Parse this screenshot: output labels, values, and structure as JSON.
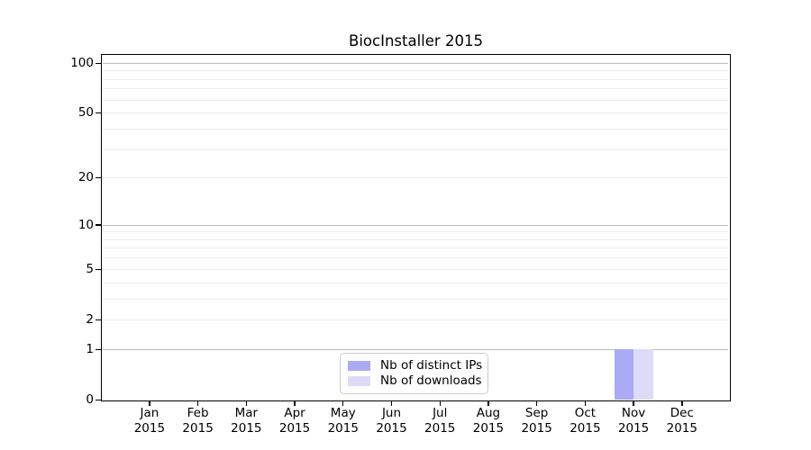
{
  "chart_data": {
    "type": "bar",
    "title": "BiocInstaller 2015",
    "xlabel": "",
    "ylabel": "",
    "categories": [
      "Jan 2015",
      "Feb 2015",
      "Mar 2015",
      "Apr 2015",
      "May 2015",
      "Jun 2015",
      "Jul 2015",
      "Aug 2015",
      "Sep 2015",
      "Oct 2015",
      "Nov 2015",
      "Dec 2015"
    ],
    "series": [
      {
        "name": "Nb of distinct IPs",
        "color": "#aaaaf5",
        "values": [
          0,
          0,
          0,
          0,
          0,
          0,
          0,
          0,
          0,
          0,
          1,
          0
        ]
      },
      {
        "name": "Nb of downloads",
        "color": "#dcdcf8",
        "values": [
          0,
          0,
          0,
          0,
          0,
          0,
          0,
          0,
          0,
          0,
          1,
          0
        ]
      }
    ],
    "y_scale": "log1p",
    "ylim": [
      0,
      112
    ],
    "y_ticks": [
      0,
      1,
      2,
      5,
      10,
      20,
      50,
      100
    ],
    "grid": {
      "on": true,
      "major_values": [
        1,
        10,
        100
      ],
      "minor_values": [
        2,
        3,
        4,
        5,
        6,
        7,
        8,
        9,
        20,
        30,
        40,
        50,
        60,
        70,
        80,
        90
      ]
    },
    "legend": {
      "position": "lower center"
    },
    "colors": {
      "grid_major": "#bbbbbb",
      "grid_minor": "#ececec",
      "axis": "#000000",
      "background": "#ffffff"
    }
  }
}
